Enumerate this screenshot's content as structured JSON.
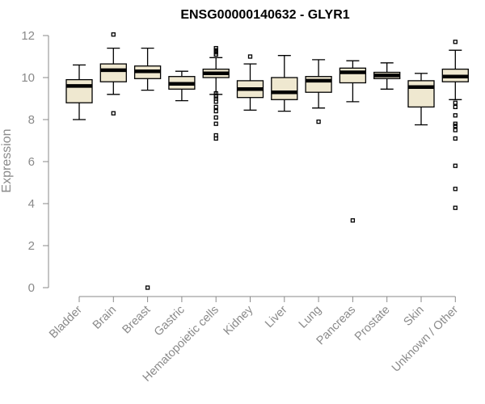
{
  "chart_data": {
    "type": "boxplot",
    "title": "ENSG00000140632 - GLYR1",
    "xlabel": "",
    "ylabel": "Expression",
    "ylim": [
      0,
      12
    ],
    "yticks": [
      0,
      2,
      4,
      6,
      8,
      10,
      12
    ],
    "grid": false,
    "legend": "none",
    "box_fill": "#efe8d0",
    "axis_color": "#8a8a8a",
    "categories": [
      "Bladder",
      "Brain",
      "Breast",
      "Gastric",
      "Hematopoietic cells",
      "Kidney",
      "Liver",
      "Lung",
      "Pancreas",
      "Prostate",
      "Skin",
      "Unknown / Other"
    ],
    "boxes": [
      {
        "category": "Bladder",
        "whisker_low": 8.0,
        "q1": 8.8,
        "median": 9.6,
        "q3": 9.9,
        "whisker_high": 10.6,
        "outliers": []
      },
      {
        "category": "Brain",
        "whisker_low": 9.2,
        "q1": 9.8,
        "median": 10.35,
        "q3": 10.65,
        "whisker_high": 11.4,
        "outliers": [
          8.3,
          12.05
        ]
      },
      {
        "category": "Breast",
        "whisker_low": 9.4,
        "q1": 9.95,
        "median": 10.3,
        "q3": 10.55,
        "whisker_high": 11.4,
        "outliers": [
          0.0
        ]
      },
      {
        "category": "Gastric",
        "whisker_low": 8.9,
        "q1": 9.45,
        "median": 9.7,
        "q3": 10.05,
        "whisker_high": 10.3,
        "outliers": []
      },
      {
        "category": "Hematopoietic cells",
        "whisker_low": 9.2,
        "q1": 10.0,
        "median": 10.2,
        "q3": 10.4,
        "whisker_high": 10.95,
        "outliers": [
          7.1,
          7.25,
          7.8,
          8.1,
          8.4,
          8.6,
          8.85,
          9.0,
          9.1,
          9.25,
          11.1,
          11.2,
          11.3,
          11.4
        ]
      },
      {
        "category": "Kidney",
        "whisker_low": 8.45,
        "q1": 9.05,
        "median": 9.45,
        "q3": 9.85,
        "whisker_high": 10.65,
        "outliers": [
          11.0
        ]
      },
      {
        "category": "Liver",
        "whisker_low": 8.4,
        "q1": 8.95,
        "median": 9.3,
        "q3": 10.0,
        "whisker_high": 11.05,
        "outliers": []
      },
      {
        "category": "Lung",
        "whisker_low": 8.55,
        "q1": 9.3,
        "median": 9.85,
        "q3": 10.05,
        "whisker_high": 10.85,
        "outliers": [
          7.9
        ]
      },
      {
        "category": "Pancreas",
        "whisker_low": 8.85,
        "q1": 9.75,
        "median": 10.25,
        "q3": 10.45,
        "whisker_high": 10.8,
        "outliers": [
          3.2
        ]
      },
      {
        "category": "Prostate",
        "whisker_low": 9.45,
        "q1": 9.95,
        "median": 10.1,
        "q3": 10.25,
        "whisker_high": 10.7,
        "outliers": []
      },
      {
        "category": "Skin",
        "whisker_low": 7.75,
        "q1": 8.6,
        "median": 9.55,
        "q3": 9.85,
        "whisker_high": 10.2,
        "outliers": []
      },
      {
        "category": "Unknown / Other",
        "whisker_low": 8.95,
        "q1": 9.8,
        "median": 10.05,
        "q3": 10.4,
        "whisker_high": 11.3,
        "outliers": [
          3.8,
          4.7,
          5.8,
          7.1,
          7.5,
          7.7,
          7.8,
          8.2,
          8.6,
          8.8,
          11.7
        ]
      }
    ]
  }
}
